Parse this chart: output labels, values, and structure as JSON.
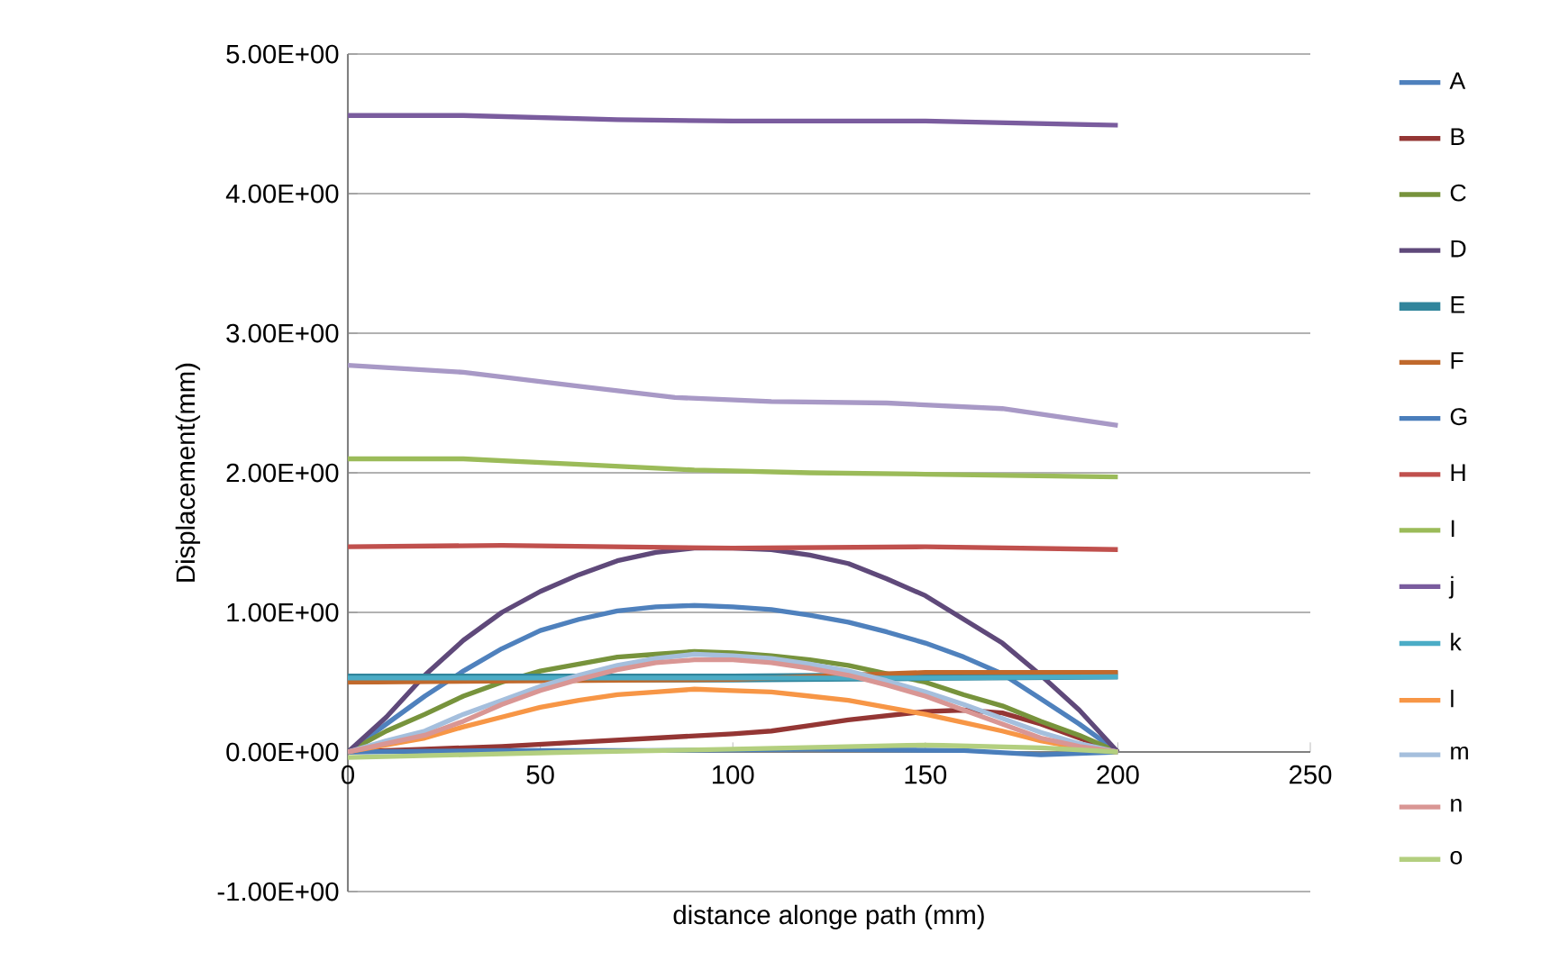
{
  "chart_data": {
    "type": "line",
    "xlabel": "distance alonge path (mm)",
    "ylabel": "Displacement(mm)",
    "xlim": [
      0,
      250
    ],
    "xticks": [
      0,
      50,
      100,
      150,
      200,
      250
    ],
    "ylim": [
      -1,
      5
    ],
    "yticks": [
      {
        "value": -1,
        "label": "-1.00E+00"
      },
      {
        "value": 0,
        "label": "0.00E+00"
      },
      {
        "value": 1,
        "label": "1.00E+00"
      },
      {
        "value": 2,
        "label": "2.00E+00"
      },
      {
        "value": 3,
        "label": "3.00E+00"
      },
      {
        "value": 4,
        "label": "4.00E+00"
      },
      {
        "value": 5,
        "label": "5.00E+00"
      }
    ],
    "grid": "y",
    "legend": "right",
    "marker": "none",
    "line_style": "solid",
    "series": [
      {
        "name": "A",
        "color": "#4f81bd",
        "x": [
          0,
          10,
          20,
          30,
          40,
          50,
          60,
          70,
          80,
          90,
          100,
          110,
          120,
          130,
          140,
          150,
          160,
          170,
          180,
          190,
          200
        ],
        "values": [
          0,
          0.2,
          0.4,
          0.58,
          0.74,
          0.87,
          0.95,
          1.01,
          1.04,
          1.05,
          1.04,
          1.02,
          0.98,
          0.93,
          0.86,
          0.78,
          0.68,
          0.56,
          0.38,
          0.2,
          0
        ]
      },
      {
        "name": "B",
        "color": "#943634",
        "x": [
          0,
          20,
          40,
          60,
          80,
          100,
          110,
          120,
          130,
          140,
          150,
          160,
          170,
          180,
          190,
          200
        ],
        "values": [
          0,
          0.02,
          0.04,
          0.07,
          0.1,
          0.13,
          0.15,
          0.19,
          0.23,
          0.26,
          0.29,
          0.3,
          0.28,
          0.2,
          0.1,
          0
        ]
      },
      {
        "name": "C",
        "color": "#77933c",
        "x": [
          0,
          10,
          20,
          30,
          40,
          50,
          60,
          70,
          80,
          90,
          100,
          110,
          120,
          130,
          140,
          150,
          160,
          170,
          180,
          190,
          200
        ],
        "values": [
          0,
          0.15,
          0.27,
          0.4,
          0.5,
          0.58,
          0.63,
          0.68,
          0.7,
          0.72,
          0.71,
          0.69,
          0.66,
          0.62,
          0.56,
          0.5,
          0.41,
          0.33,
          0.22,
          0.12,
          0
        ]
      },
      {
        "name": "D",
        "color": "#5f497a",
        "x": [
          0,
          10,
          20,
          30,
          40,
          50,
          60,
          70,
          80,
          90,
          100,
          110,
          120,
          130,
          140,
          150,
          160,
          170,
          180,
          190,
          200
        ],
        "values": [
          0,
          0.25,
          0.55,
          0.8,
          1.0,
          1.15,
          1.27,
          1.37,
          1.43,
          1.46,
          1.46,
          1.45,
          1.41,
          1.35,
          1.24,
          1.12,
          0.95,
          0.78,
          0.55,
          0.3,
          0
        ]
      },
      {
        "name": "E",
        "color": "#31859c",
        "x": [
          0,
          50,
          100,
          150,
          200
        ],
        "values": [
          0.53,
          0.53,
          0.53,
          0.54,
          0.55
        ]
      },
      {
        "name": "F",
        "color": "#c0692c",
        "x": [
          0,
          50,
          100,
          150,
          200
        ],
        "values": [
          0.5,
          0.51,
          0.52,
          0.57,
          0.57
        ]
      },
      {
        "name": "G",
        "color": "#4a7ebb",
        "x": [
          0,
          40,
          80,
          120,
          160,
          180,
          200
        ],
        "values": [
          0,
          0.01,
          0.01,
          0.02,
          0.01,
          -0.02,
          0
        ]
      },
      {
        "name": "H",
        "color": "#c0504d",
        "x": [
          0,
          40,
          100,
          150,
          200
        ],
        "values": [
          1.47,
          1.48,
          1.46,
          1.47,
          1.45
        ]
      },
      {
        "name": "I",
        "color": "#9bbb59",
        "x": [
          0,
          30,
          60,
          90,
          120,
          150,
          200
        ],
        "values": [
          2.1,
          2.1,
          2.06,
          2.02,
          2.0,
          1.99,
          1.97
        ]
      },
      {
        "name": "j",
        "color": "#7a5c9e",
        "x": [
          0,
          30,
          70,
          100,
          150,
          200
        ],
        "values": [
          4.56,
          4.56,
          4.53,
          4.52,
          4.52,
          4.49
        ]
      },
      {
        "name": "k",
        "color": "#4bacc6",
        "x": [
          0,
          50,
          100,
          150,
          200
        ],
        "values": [
          0.53,
          0.53,
          0.53,
          0.53,
          0.54
        ]
      },
      {
        "name": "l",
        "color": "#f79646",
        "x": [
          0,
          10,
          20,
          30,
          40,
          50,
          60,
          70,
          80,
          90,
          100,
          110,
          120,
          130,
          140,
          150,
          160,
          170,
          180,
          190,
          200
        ],
        "values": [
          0,
          0.05,
          0.1,
          0.18,
          0.25,
          0.32,
          0.37,
          0.41,
          0.43,
          0.45,
          0.44,
          0.43,
          0.4,
          0.37,
          0.32,
          0.27,
          0.21,
          0.15,
          0.08,
          0.03,
          0
        ]
      },
      {
        "name": "m",
        "color": "#a5bfdd",
        "x": [
          0,
          10,
          20,
          30,
          40,
          50,
          60,
          70,
          80,
          90,
          100,
          110,
          120,
          130,
          140,
          150,
          160,
          170,
          180,
          190,
          200
        ],
        "values": [
          0,
          0.08,
          0.15,
          0.27,
          0.37,
          0.47,
          0.55,
          0.62,
          0.67,
          0.7,
          0.69,
          0.67,
          0.63,
          0.58,
          0.51,
          0.43,
          0.34,
          0.24,
          0.14,
          0.06,
          0
        ]
      },
      {
        "name": "n",
        "color": "#d99694",
        "x": [
          0,
          10,
          20,
          30,
          40,
          50,
          60,
          70,
          80,
          90,
          100,
          110,
          120,
          130,
          140,
          150,
          160,
          170,
          180,
          190,
          200
        ],
        "values": [
          0,
          0.06,
          0.12,
          0.22,
          0.34,
          0.44,
          0.52,
          0.59,
          0.64,
          0.66,
          0.66,
          0.64,
          0.6,
          0.55,
          0.48,
          0.4,
          0.3,
          0.2,
          0.1,
          0.04,
          0
        ]
      },
      {
        "name": "o",
        "color": "#b3cf7f",
        "x": [
          0,
          30,
          60,
          100,
          150,
          180,
          200
        ],
        "values": [
          -0.04,
          -0.02,
          0,
          0.02,
          0.05,
          0.03,
          0
        ]
      },
      {
        "color": "#a899c6",
        "x": [
          0,
          30,
          60,
          85,
          110,
          140,
          170,
          200
        ],
        "values": [
          2.77,
          2.72,
          2.62,
          2.54,
          2.51,
          2.5,
          2.46,
          2.34
        ]
      }
    ]
  }
}
